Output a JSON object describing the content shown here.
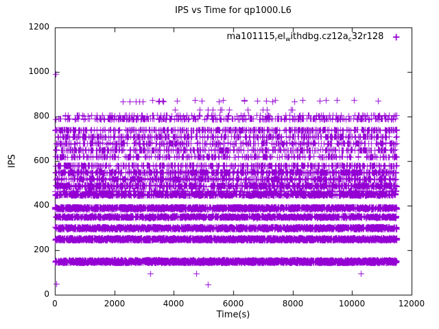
{
  "window": {
    "title": "IPS vs Time for qp1000.L6"
  },
  "chart_data": {
    "type": "scatter",
    "title": "IPS vs Time for qp1000.L6",
    "xlabel": "Time(s)",
    "ylabel": "IPS",
    "xlim": [
      0,
      12000
    ],
    "ylim": [
      0,
      1200
    ],
    "xticks": [
      0,
      2000,
      4000,
      6000,
      8000,
      10000,
      12000
    ],
    "xtick_labels": [
      "0",
      "2000",
      "4000",
      "6000",
      "8000",
      "10000",
      "12000"
    ],
    "yticks": [
      0,
      200,
      400,
      600,
      800,
      1000,
      1200
    ],
    "ytick_labels": [
      "0",
      "200",
      "400",
      "600",
      "800",
      "1000",
      "1200"
    ],
    "grid": false,
    "legend": {
      "position": "top-right-inside",
      "series_label_plain": "ma101115_rel_withdbg.cz12a_c32r128",
      "segments": [
        {
          "text": "ma101115",
          "sub": false
        },
        {
          "text": "r",
          "sub": true
        },
        {
          "text": "el",
          "sub": false
        },
        {
          "text": "w",
          "sub": true
        },
        {
          "text": "ithdbg.cz12a",
          "sub": false
        },
        {
          "text": "c",
          "sub": true
        },
        {
          "text": "32r128",
          "sub": false
        }
      ],
      "marker_glyph": "+"
    },
    "marker": {
      "shape": "plus",
      "color": "#9400D3",
      "size": 9
    },
    "series": [
      {
        "name": "ma101115_rel_withdbg.cz12a_c32r128",
        "description": "Horizontal bands of + markers at discrete IPS levels over time; counts approximate observed density.",
        "bands": [
          {
            "ips": 150,
            "x_start": 0,
            "x_end": 11500,
            "count": 2400,
            "ips_jitter": 6
          },
          {
            "ips": 250,
            "x_start": 0,
            "x_end": 11500,
            "count": 1900,
            "ips_jitter": 5
          },
          {
            "ips": 300,
            "x_start": 0,
            "x_end": 11500,
            "count": 1500,
            "ips_jitter": 5
          },
          {
            "ips": 350,
            "x_start": 0,
            "x_end": 11500,
            "count": 1200,
            "ips_jitter": 4
          },
          {
            "ips": 390,
            "x_start": 0,
            "x_end": 11500,
            "count": 1700,
            "ips_jitter": 5
          },
          {
            "ips": 450,
            "x_start": 0,
            "x_end": 11500,
            "count": 1000,
            "ips_jitter": 4
          },
          {
            "ips": 465,
            "x_start": 0,
            "x_end": 11500,
            "count": 300,
            "ips_jitter": 2
          },
          {
            "ips": 490,
            "x_start": 0,
            "x_end": 11500,
            "count": 800,
            "ips_jitter": 3
          },
          {
            "ips": 520,
            "x_start": 0,
            "x_end": 11500,
            "count": 500,
            "ips_jitter": 3
          },
          {
            "ips": 550,
            "x_start": 0,
            "x_end": 11500,
            "count": 650,
            "ips_jitter": 3
          },
          {
            "ips": 580,
            "x_start": 0,
            "x_end": 11500,
            "count": 420,
            "ips_jitter": 3
          },
          {
            "ips": 620,
            "x_start": 0,
            "x_end": 11500,
            "count": 260,
            "ips_jitter": 2
          },
          {
            "ips": 650,
            "x_start": 0,
            "x_end": 11500,
            "count": 340,
            "ips_jitter": 2
          },
          {
            "ips": 680,
            "x_start": 0,
            "x_end": 11500,
            "count": 300,
            "ips_jitter": 2
          },
          {
            "ips": 710,
            "x_start": 0,
            "x_end": 11500,
            "count": 330,
            "ips_jitter": 2
          },
          {
            "ips": 740,
            "x_start": 0,
            "x_end": 11500,
            "count": 380,
            "ips_jitter": 2
          },
          {
            "ips": 790,
            "x_start": 0,
            "x_end": 11500,
            "count": 260,
            "ips_jitter": 2
          },
          {
            "ips": 805,
            "x_start": 300,
            "x_end": 11500,
            "count": 110,
            "ips_jitter": 2
          },
          {
            "ips": 830,
            "x_start": 1900,
            "x_end": 9000,
            "count": 12,
            "ips_jitter": 0
          },
          {
            "ips": 870,
            "x_start": 1800,
            "x_end": 11500,
            "count": 28,
            "ips_jitter": 4
          }
        ],
        "outliers": [
          [
            20,
            990
          ],
          [
            40,
            50
          ],
          [
            3200,
            95
          ],
          [
            4750,
            95
          ],
          [
            5150,
            45
          ],
          [
            10300,
            95
          ]
        ]
      }
    ],
    "colors": {
      "marker": "#9400D3",
      "axis": "#000000",
      "background": "#FFFFFF"
    }
  }
}
